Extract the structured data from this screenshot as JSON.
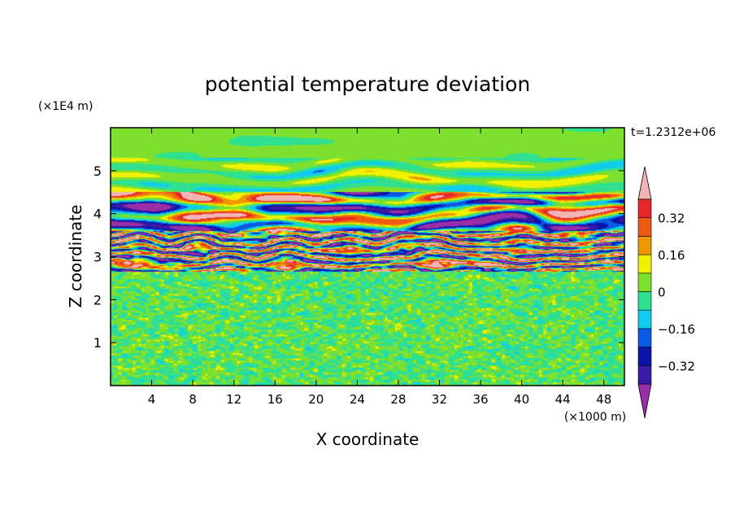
{
  "chart_data": {
    "type": "heatmap",
    "title": "potential temperature deviation",
    "xlabel": "X coordinate",
    "ylabel": "Z coordinate",
    "x_unit": "(×1000 m)",
    "y_unit": "(×1E4 m)",
    "time_label": "t=1.2312e+06",
    "xlim": [
      0,
      50
    ],
    "ylim": [
      0,
      6
    ],
    "x_ticks": [
      4,
      8,
      12,
      16,
      20,
      24,
      28,
      32,
      36,
      40,
      44,
      48
    ],
    "y_ticks": [
      1,
      2,
      3,
      4,
      5
    ],
    "colorbar": {
      "levels": [
        -0.4,
        -0.32,
        -0.24,
        -0.16,
        -0.08,
        0,
        0.08,
        0.16,
        0.24,
        0.32,
        0.4
      ],
      "tick_labels": [
        {
          "value": 0.32,
          "text": "0.32"
        },
        {
          "value": 0.16,
          "text": "0.16"
        },
        {
          "value": 0,
          "text": "0"
        },
        {
          "value": -0.16,
          "text": "−0.16"
        },
        {
          "value": -0.32,
          "text": "−0.32"
        }
      ],
      "colors": [
        "#9a2ea6",
        "#3a1aa6",
        "#0a14a8",
        "#0a5ae6",
        "#10ccee",
        "#2ee090",
        "#7ee02e",
        "#f0f000",
        "#f09600",
        "#f05a14",
        "#e82828",
        "#f2b4b4"
      ],
      "extend": "both"
    },
    "layers": [
      {
        "z_range": [
          0,
          2.65
        ],
        "pattern": "fine-noise",
        "dominant_range": [
          -0.08,
          0.08
        ]
      },
      {
        "z_range": [
          2.65,
          3.6
        ],
        "pattern": "thin-bands",
        "amplitude": 0.45
      },
      {
        "z_range": [
          3.6,
          4.5
        ],
        "pattern": "large-cells",
        "amplitude": 0.45
      },
      {
        "z_range": [
          4.5,
          5.3
        ],
        "pattern": "weak-waves",
        "amplitude": 0.15
      },
      {
        "z_range": [
          5.3,
          6.0
        ],
        "pattern": "near-zero",
        "amplitude": 0.04
      }
    ]
  }
}
